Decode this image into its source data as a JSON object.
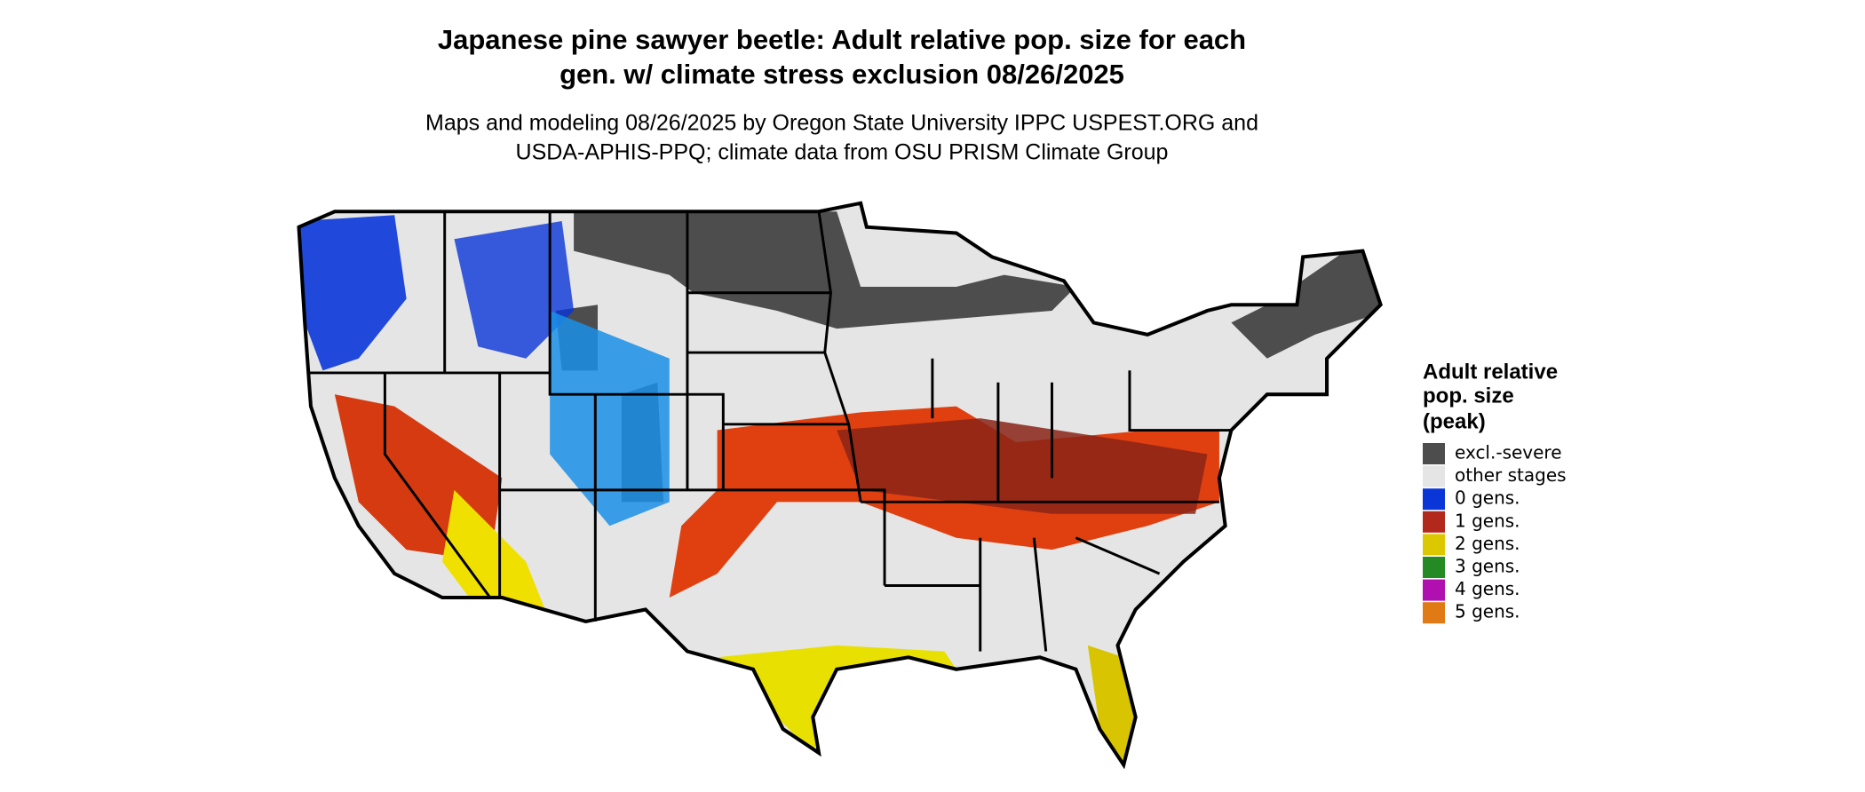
{
  "title": [
    "Japanese pine sawyer beetle: Adult relative pop. size for each",
    "gen. w/ climate stress exclusion 08/26/2025"
  ],
  "subtitle": [
    "Maps and modeling 08/26/2025 by Oregon State University IPPC USPEST.ORG and",
    "USDA-APHIS-PPQ; climate data from OSU PRISM Climate Group"
  ],
  "legend": {
    "title": [
      "Adult relative",
      "pop. size",
      "(peak)"
    ],
    "items": [
      {
        "label": "excl.-severe",
        "color": "#4d4d4d"
      },
      {
        "label": "other stages",
        "color": "#e5e5e5"
      },
      {
        "label": "0 gens.",
        "color": "#0a36d8"
      },
      {
        "label": "1 gens.",
        "color": "#b2281c"
      },
      {
        "label": "2 gens.",
        "color": "#dcc800"
      },
      {
        "label": "3 gens.",
        "color": "#248a24"
      },
      {
        "label": "4 gens.",
        "color": "#b010b0"
      },
      {
        "label": "5 gens.",
        "color": "#e07a14"
      }
    ]
  }
}
